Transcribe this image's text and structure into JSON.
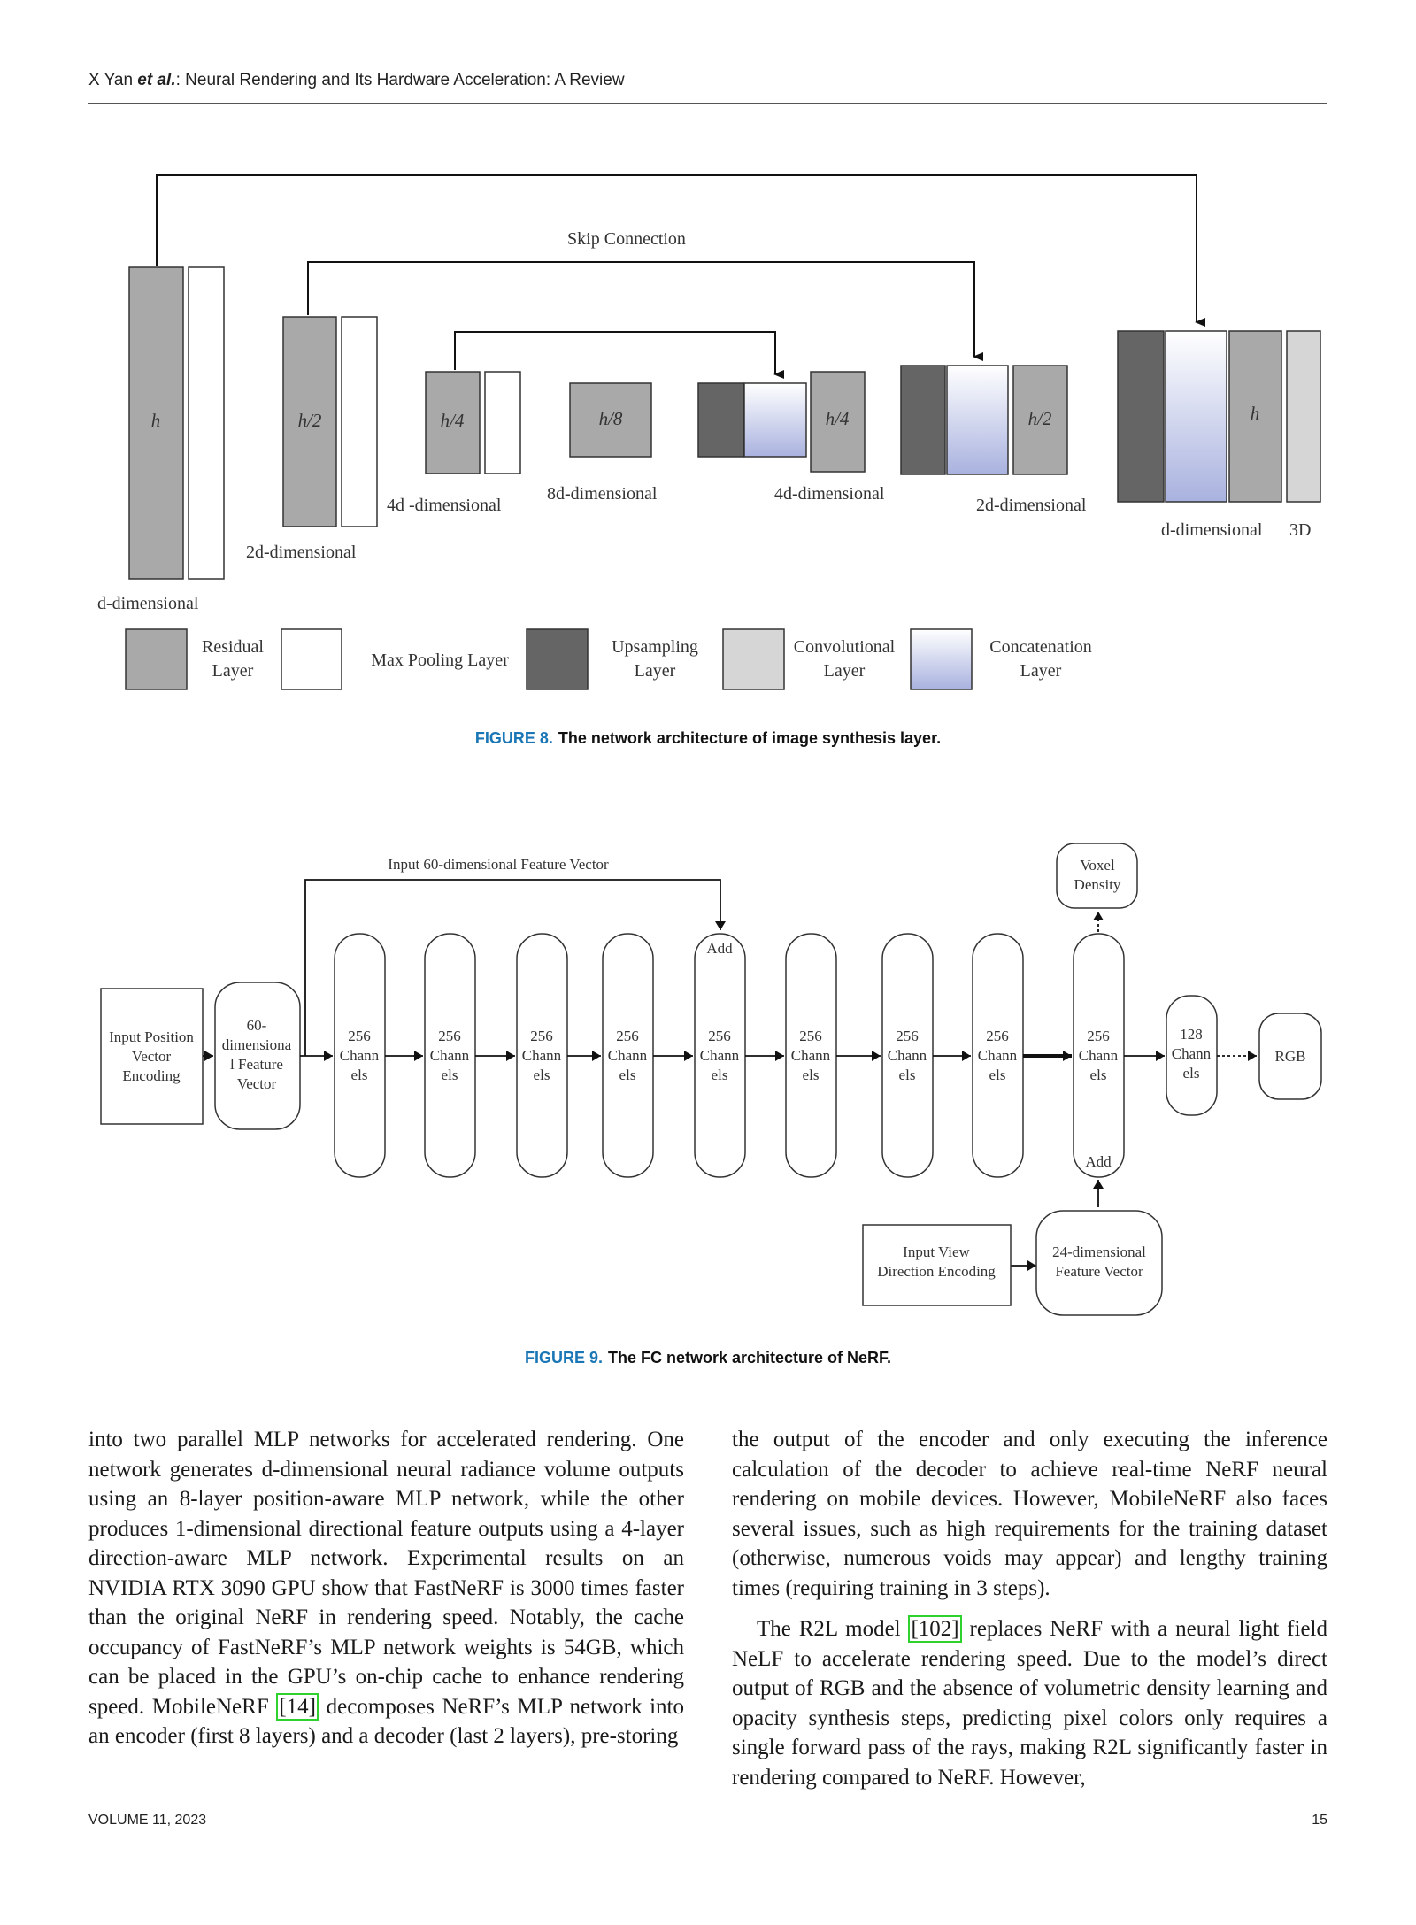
{
  "header": {
    "authors": "X Yan ",
    "etal": "et al.",
    "title_rest": ": Neural Rendering and Its Hardware Acceleration: A Review"
  },
  "fig8": {
    "skip_label": "Skip Connection",
    "h_labels": [
      "h",
      "h/2",
      "h/4",
      "h/8",
      "h/4",
      "h/2",
      "h"
    ],
    "dim_labels": [
      "d-dimensional",
      "2d-dimensional",
      "4d -dimensional",
      "8d-dimensional",
      "4d-dimensional",
      "2d-dimensional",
      "d-dimensional",
      "3D"
    ],
    "legend": [
      {
        "line1": "Residual",
        "line2": "Layer"
      },
      {
        "line1": "Max Pooling Layer",
        "line2": ""
      },
      {
        "line1": "Upsampling",
        "line2": "Layer"
      },
      {
        "line1": "Convolutional",
        "line2": "Layer"
      },
      {
        "line1": "Concatenation",
        "line2": "Layer"
      }
    ],
    "caption_label": "FIGURE 8.",
    "caption_text": "The network architecture of image synthesis layer.",
    "colors": {
      "residual": "#a9a9a9",
      "pool": "#ffffff",
      "upsample": "#656565",
      "conv": "#d6d6d6",
      "concat_top": "#ffffff",
      "concat_bottom": "#a9b2df"
    }
  },
  "fig9": {
    "input_feature_label": "Input 60-dimensional Feature Vector",
    "input_pos": [
      "Input Position",
      "Vector",
      "Encoding"
    ],
    "feature_vec": [
      "60-",
      "dimensiona",
      "l Feature",
      "Vector"
    ],
    "channel": [
      "256",
      "Chann",
      "els"
    ],
    "channel128": [
      "128",
      "Chann",
      "els"
    ],
    "add": "Add",
    "voxel": [
      "Voxel",
      "Density"
    ],
    "rgb": "RGB",
    "view_dir": [
      "Input View",
      "Direction Encoding"
    ],
    "feat24": [
      "24-dimensional",
      "Feature Vector"
    ],
    "caption_label": "FIGURE 9.",
    "caption_text": "The FC network architecture of NeRF."
  },
  "body": {
    "left_p1_a": "into two parallel MLP networks for accelerated rendering. One network generates d-dimensional neural radiance volume outputs using an 8-layer position-aware MLP network, while the other produces 1-dimensional directional feature outputs using a 4-layer direction-aware MLP network. Experimental results on an NVIDIA RTX 3090 GPU show that FastNeRF is 3000 times faster than the original NeRF in rendering speed. Notably, the cache occupancy of FastNeRF’s MLP network weights is 54GB, which can be placed in the GPU’s on-chip cache to enhance rendering speed. MobileNeRF ",
    "left_cite": "[14]",
    "left_p1_b": " decomposes NeRF’s MLP network into an encoder (first 8 layers) and a decoder (last 2 layers), pre-storing",
    "right_p1": "the output of the encoder and only executing the inference calculation of the decoder to achieve real-time NeRF neural rendering on mobile devices. However, MobileNeRF also faces several issues, such as high requirements for the training dataset (otherwise, numerous voids may appear) and lengthy training times (requiring training in 3 steps).",
    "right_p2_a": "The R2L model ",
    "right_cite": "[102]",
    "right_p2_b": " replaces NeRF with a neural light field NeLF to accelerate rendering speed. Due to the model’s direct output of RGB and the absence of volumetric density learning and opacity synthesis steps, predicting pixel colors only requires a single forward pass of the rays, making R2L significantly faster in rendering compared to NeRF. However,"
  },
  "footer": {
    "volume": "VOLUME 11, 2023",
    "page": "15"
  }
}
